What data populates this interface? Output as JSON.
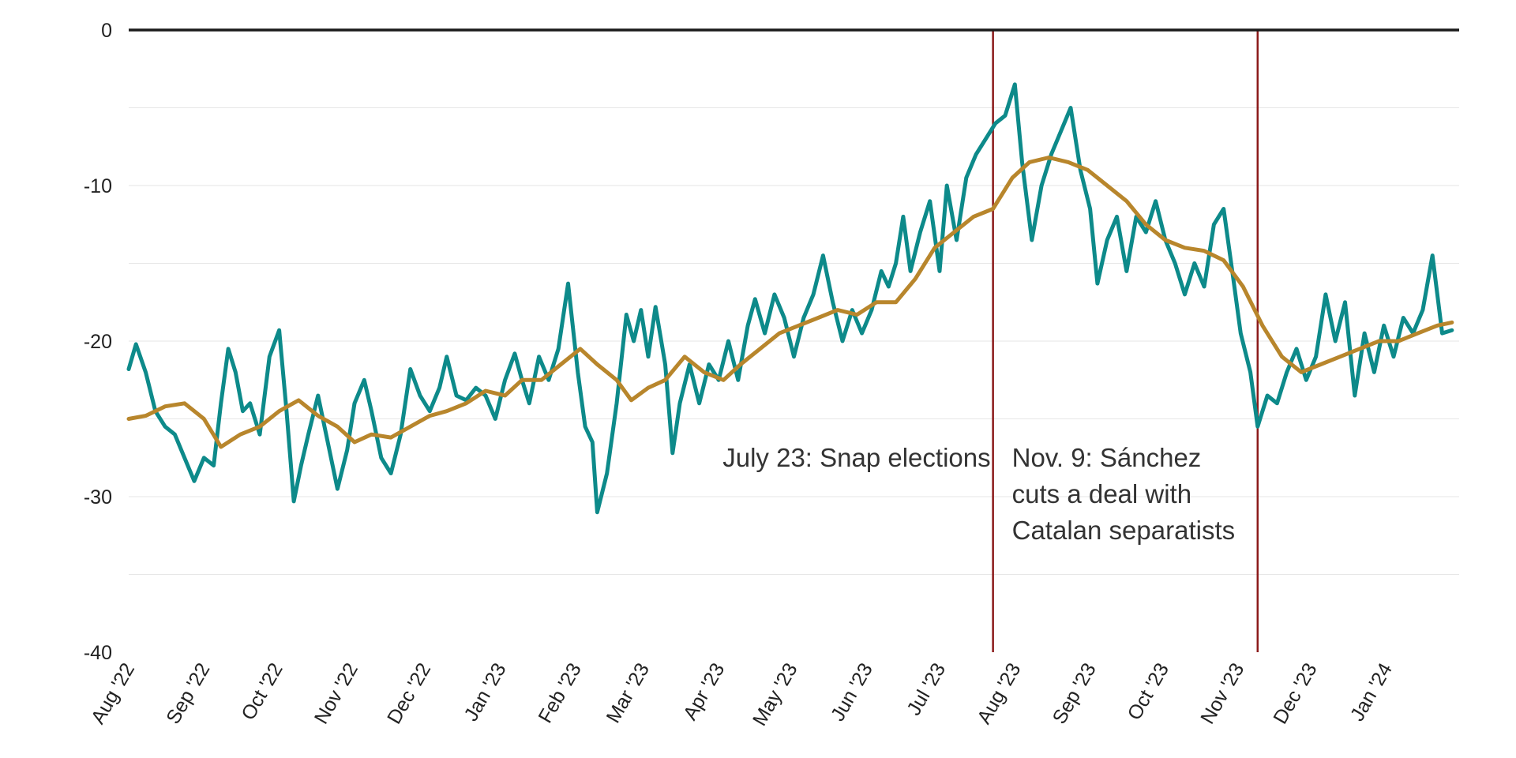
{
  "chart_data": {
    "type": "line",
    "title": "",
    "xlabel": "",
    "ylabel": "",
    "ylim": [
      -40,
      0
    ],
    "yticks": [
      0,
      -10,
      -20,
      -30,
      -40
    ],
    "ytick_labels": [
      "0",
      "-10",
      "-20",
      "-30",
      "-40"
    ],
    "y_gridlines": [
      -5,
      -10,
      -15,
      -20,
      -25,
      -30,
      -35
    ],
    "grid": "horizontal",
    "x_tick_labels": [
      "Aug '22",
      "Sep '22",
      "Oct '22",
      "Nov '22",
      "Dec '22",
      "Jan '23",
      "Feb '23",
      "Mar '23",
      "Apr '23",
      "May '23",
      "Jun '23",
      "Jul '23",
      "Aug '23",
      "Sep '23",
      "Oct '23",
      "Nov '23",
      "Dec '23",
      "Jan '24"
    ],
    "x_range": [
      "2022-08-01",
      "2024-01-31"
    ],
    "colors": {
      "daily": "#0d8a8a",
      "average": "#b8862c",
      "event_line": "#8b1a1a",
      "zero_line": "#1a1a1a",
      "grid": "#e6e6e6"
    },
    "series": [
      {
        "color": "#0d8a8a",
        "points": [
          [
            "2022-08-01",
            -21.8
          ],
          [
            "2022-08-04",
            -20.2
          ],
          [
            "2022-08-08",
            -22.0
          ],
          [
            "2022-08-12",
            -24.5
          ],
          [
            "2022-08-16",
            -25.5
          ],
          [
            "2022-08-20",
            -26.0
          ],
          [
            "2022-08-24",
            -27.5
          ],
          [
            "2022-08-28",
            -29.0
          ],
          [
            "2022-09-01",
            -27.5
          ],
          [
            "2022-09-05",
            -28.0
          ],
          [
            "2022-09-08",
            -24.0
          ],
          [
            "2022-09-11",
            -20.5
          ],
          [
            "2022-09-14",
            -22.0
          ],
          [
            "2022-09-17",
            -24.5
          ],
          [
            "2022-09-20",
            -24.0
          ],
          [
            "2022-09-24",
            -26.0
          ],
          [
            "2022-09-28",
            -21.0
          ],
          [
            "2022-10-02",
            -19.3
          ],
          [
            "2022-10-05",
            -24.5
          ],
          [
            "2022-10-08",
            -30.3
          ],
          [
            "2022-10-11",
            -28.0
          ],
          [
            "2022-10-14",
            -26.0
          ],
          [
            "2022-10-18",
            -23.5
          ],
          [
            "2022-10-22",
            -26.5
          ],
          [
            "2022-10-26",
            -29.5
          ],
          [
            "2022-10-30",
            -27.0
          ],
          [
            "2022-11-02",
            -24.0
          ],
          [
            "2022-11-06",
            -22.5
          ],
          [
            "2022-11-09",
            -24.5
          ],
          [
            "2022-11-13",
            -27.5
          ],
          [
            "2022-11-17",
            -28.5
          ],
          [
            "2022-11-21",
            -26.0
          ],
          [
            "2022-11-25",
            -21.8
          ],
          [
            "2022-11-29",
            -23.5
          ],
          [
            "2022-12-03",
            -24.5
          ],
          [
            "2022-12-07",
            -23.0
          ],
          [
            "2022-12-10",
            -21.0
          ],
          [
            "2022-12-14",
            -23.5
          ],
          [
            "2022-12-18",
            -23.8
          ],
          [
            "2022-12-22",
            -23.0
          ],
          [
            "2022-12-26",
            -23.5
          ],
          [
            "2022-12-30",
            -25.0
          ],
          [
            "2023-01-03",
            -22.5
          ],
          [
            "2023-01-07",
            -20.8
          ],
          [
            "2023-01-10",
            -22.5
          ],
          [
            "2023-01-13",
            -24.0
          ],
          [
            "2023-01-17",
            -21.0
          ],
          [
            "2023-01-21",
            -22.5
          ],
          [
            "2023-01-25",
            -20.5
          ],
          [
            "2023-01-29",
            -16.3
          ],
          [
            "2023-02-02",
            -22.0
          ],
          [
            "2023-02-05",
            -25.5
          ],
          [
            "2023-02-08",
            -26.5
          ],
          [
            "2023-02-10",
            -31.0
          ],
          [
            "2023-02-14",
            -28.5
          ],
          [
            "2023-02-18",
            -24.0
          ],
          [
            "2023-02-22",
            -18.3
          ],
          [
            "2023-02-25",
            -20.0
          ],
          [
            "2023-02-28",
            -18.0
          ],
          [
            "2023-03-03",
            -21.0
          ],
          [
            "2023-03-06",
            -17.8
          ],
          [
            "2023-03-10",
            -21.5
          ],
          [
            "2023-03-13",
            -27.2
          ],
          [
            "2023-03-16",
            -24.0
          ],
          [
            "2023-03-20",
            -21.5
          ],
          [
            "2023-03-24",
            -24.0
          ],
          [
            "2023-03-28",
            -21.5
          ],
          [
            "2023-04-01",
            -22.5
          ],
          [
            "2023-04-05",
            -20.0
          ],
          [
            "2023-04-09",
            -22.5
          ],
          [
            "2023-04-13",
            -19.0
          ],
          [
            "2023-04-16",
            -17.3
          ],
          [
            "2023-04-20",
            -19.5
          ],
          [
            "2023-04-24",
            -17.0
          ],
          [
            "2023-04-28",
            -18.5
          ],
          [
            "2023-05-02",
            -21.0
          ],
          [
            "2023-05-06",
            -18.5
          ],
          [
            "2023-05-10",
            -17.0
          ],
          [
            "2023-05-14",
            -14.5
          ],
          [
            "2023-05-18",
            -17.5
          ],
          [
            "2023-05-22",
            -20.0
          ],
          [
            "2023-05-26",
            -18.0
          ],
          [
            "2023-05-30",
            -19.5
          ],
          [
            "2023-06-03",
            -18.0
          ],
          [
            "2023-06-07",
            -15.5
          ],
          [
            "2023-06-10",
            -16.5
          ],
          [
            "2023-06-13",
            -15.0
          ],
          [
            "2023-06-16",
            -12.0
          ],
          [
            "2023-06-19",
            -15.5
          ],
          [
            "2023-06-23",
            -13.0
          ],
          [
            "2023-06-27",
            -11.0
          ],
          [
            "2023-07-01",
            -15.5
          ],
          [
            "2023-07-04",
            -10.0
          ],
          [
            "2023-07-08",
            -13.5
          ],
          [
            "2023-07-12",
            -9.5
          ],
          [
            "2023-07-16",
            -8.0
          ],
          [
            "2023-07-20",
            -7.0
          ],
          [
            "2023-07-24",
            -6.0
          ],
          [
            "2023-07-28",
            -5.5
          ],
          [
            "2023-08-01",
            -3.5
          ],
          [
            "2023-08-04",
            -8.5
          ],
          [
            "2023-08-08",
            -13.5
          ],
          [
            "2023-08-12",
            -10.0
          ],
          [
            "2023-08-16",
            -8.0
          ],
          [
            "2023-08-20",
            -6.5
          ],
          [
            "2023-08-24",
            -5.0
          ],
          [
            "2023-08-28",
            -9.0
          ],
          [
            "2023-09-01",
            -11.5
          ],
          [
            "2023-09-04",
            -16.3
          ],
          [
            "2023-09-08",
            -13.5
          ],
          [
            "2023-09-12",
            -12.0
          ],
          [
            "2023-09-16",
            -15.5
          ],
          [
            "2023-09-20",
            -12.0
          ],
          [
            "2023-09-24",
            -13.0
          ],
          [
            "2023-09-28",
            -11.0
          ],
          [
            "2023-10-02",
            -13.5
          ],
          [
            "2023-10-06",
            -15.0
          ],
          [
            "2023-10-10",
            -17.0
          ],
          [
            "2023-10-14",
            -15.0
          ],
          [
            "2023-10-18",
            -16.5
          ],
          [
            "2023-10-22",
            -12.5
          ],
          [
            "2023-10-26",
            -11.5
          ],
          [
            "2023-10-30",
            -16.0
          ],
          [
            "2023-11-02",
            -19.5
          ],
          [
            "2023-11-06",
            -22.0
          ],
          [
            "2023-11-09",
            -25.5
          ],
          [
            "2023-11-13",
            -23.5
          ],
          [
            "2023-11-17",
            -24.0
          ],
          [
            "2023-11-21",
            -22.0
          ],
          [
            "2023-11-25",
            -20.5
          ],
          [
            "2023-11-29",
            -22.5
          ],
          [
            "2023-12-03",
            -21.0
          ],
          [
            "2023-12-07",
            -17.0
          ],
          [
            "2023-12-11",
            -20.0
          ],
          [
            "2023-12-15",
            -17.5
          ],
          [
            "2023-12-19",
            -23.5
          ],
          [
            "2023-12-23",
            -19.5
          ],
          [
            "2023-12-27",
            -22.0
          ],
          [
            "2023-12-31",
            -19.0
          ],
          [
            "2024-01-04",
            -21.0
          ],
          [
            "2024-01-08",
            -18.5
          ],
          [
            "2024-01-12",
            -19.5
          ],
          [
            "2024-01-16",
            -18.0
          ],
          [
            "2024-01-20",
            -14.5
          ],
          [
            "2024-01-24",
            -19.5
          ],
          [
            "2024-01-28",
            -19.3
          ]
        ]
      },
      {
        "color": "#b8862c",
        "points": [
          [
            "2022-08-01",
            -25.0
          ],
          [
            "2022-08-08",
            -24.8
          ],
          [
            "2022-08-16",
            -24.2
          ],
          [
            "2022-08-24",
            -24.0
          ],
          [
            "2022-09-01",
            -25.0
          ],
          [
            "2022-09-08",
            -26.8
          ],
          [
            "2022-09-16",
            -26.0
          ],
          [
            "2022-09-24",
            -25.5
          ],
          [
            "2022-10-02",
            -24.5
          ],
          [
            "2022-10-10",
            -23.8
          ],
          [
            "2022-10-18",
            -24.8
          ],
          [
            "2022-10-26",
            -25.5
          ],
          [
            "2022-11-02",
            -26.5
          ],
          [
            "2022-11-09",
            -26.0
          ],
          [
            "2022-11-17",
            -26.2
          ],
          [
            "2022-11-25",
            -25.5
          ],
          [
            "2022-12-03",
            -24.8
          ],
          [
            "2022-12-10",
            -24.5
          ],
          [
            "2022-12-18",
            -24.0
          ],
          [
            "2022-12-26",
            -23.2
          ],
          [
            "2023-01-03",
            -23.5
          ],
          [
            "2023-01-10",
            -22.5
          ],
          [
            "2023-01-18",
            -22.5
          ],
          [
            "2023-01-26",
            -21.5
          ],
          [
            "2023-02-03",
            -20.5
          ],
          [
            "2023-02-10",
            -21.5
          ],
          [
            "2023-02-18",
            -22.5
          ],
          [
            "2023-02-24",
            -23.8
          ],
          [
            "2023-03-03",
            -23.0
          ],
          [
            "2023-03-10",
            -22.5
          ],
          [
            "2023-03-18",
            -21.0
          ],
          [
            "2023-03-26",
            -22.0
          ],
          [
            "2023-04-03",
            -22.5
          ],
          [
            "2023-04-10",
            -21.5
          ],
          [
            "2023-04-18",
            -20.5
          ],
          [
            "2023-04-26",
            -19.5
          ],
          [
            "2023-05-04",
            -19.0
          ],
          [
            "2023-05-12",
            -18.5
          ],
          [
            "2023-05-20",
            -18.0
          ],
          [
            "2023-05-28",
            -18.3
          ],
          [
            "2023-06-05",
            -17.5
          ],
          [
            "2023-06-13",
            -17.5
          ],
          [
            "2023-06-21",
            -16.0
          ],
          [
            "2023-06-29",
            -14.0
          ],
          [
            "2023-07-07",
            -13.0
          ],
          [
            "2023-07-15",
            -12.0
          ],
          [
            "2023-07-23",
            -11.5
          ],
          [
            "2023-07-31",
            -9.5
          ],
          [
            "2023-08-07",
            -8.5
          ],
          [
            "2023-08-15",
            -8.2
          ],
          [
            "2023-08-23",
            -8.5
          ],
          [
            "2023-08-31",
            -9.0
          ],
          [
            "2023-09-08",
            -10.0
          ],
          [
            "2023-09-16",
            -11.0
          ],
          [
            "2023-09-24",
            -12.5
          ],
          [
            "2023-10-02",
            -13.5
          ],
          [
            "2023-10-10",
            -14.0
          ],
          [
            "2023-10-18",
            -14.2
          ],
          [
            "2023-10-26",
            -14.8
          ],
          [
            "2023-11-03",
            -16.5
          ],
          [
            "2023-11-11",
            -19.0
          ],
          [
            "2023-11-19",
            -21.0
          ],
          [
            "2023-11-27",
            -22.0
          ],
          [
            "2023-12-05",
            -21.5
          ],
          [
            "2023-12-13",
            -21.0
          ],
          [
            "2023-12-21",
            -20.5
          ],
          [
            "2023-12-29",
            -20.0
          ],
          [
            "2024-01-06",
            -20.0
          ],
          [
            "2024-01-14",
            -19.5
          ],
          [
            "2024-01-22",
            -19.0
          ],
          [
            "2024-01-28",
            -18.8
          ]
        ]
      }
    ],
    "annotations": [
      {
        "x": "2023-07-23",
        "label_lines": [
          "July 23: Snap elections"
        ]
      },
      {
        "x": "2023-11-09",
        "label_lines": [
          "Nov. 9:  Sánchez",
          "cuts a deal with",
          "Catalan separatists"
        ]
      }
    ]
  }
}
